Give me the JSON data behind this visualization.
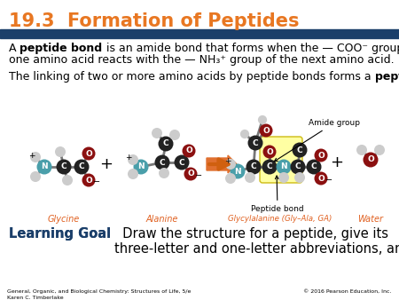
{
  "title": "19.3  Formation of Peptides",
  "title_color": "#E87722",
  "title_fontsize": 15,
  "header_bar_color": "#1B3F6A",
  "bg_color": "#FFFFFF",
  "label_glycine": "Glycine",
  "label_alanine": "Alanine",
  "label_glycylalanine": "Glycylalanine (Gly–Ala, GA)",
  "label_water": "Water",
  "label_color": "#E06020",
  "peptide_bond_label": "Peptide bond",
  "amide_group_label": "Amide group",
  "footer_left": "General, Organic, and Biological Chemistry: Structures of Life, 5/e\nKaren C. Timberlake",
  "footer_right": "© 2016 Pearson Education, Inc.",
  "N_color": "#4A9FAA",
  "C_color": "#222222",
  "O_color": "#8B1010",
  "H_color": "#CCCCCC",
  "bond_color": "#777777"
}
